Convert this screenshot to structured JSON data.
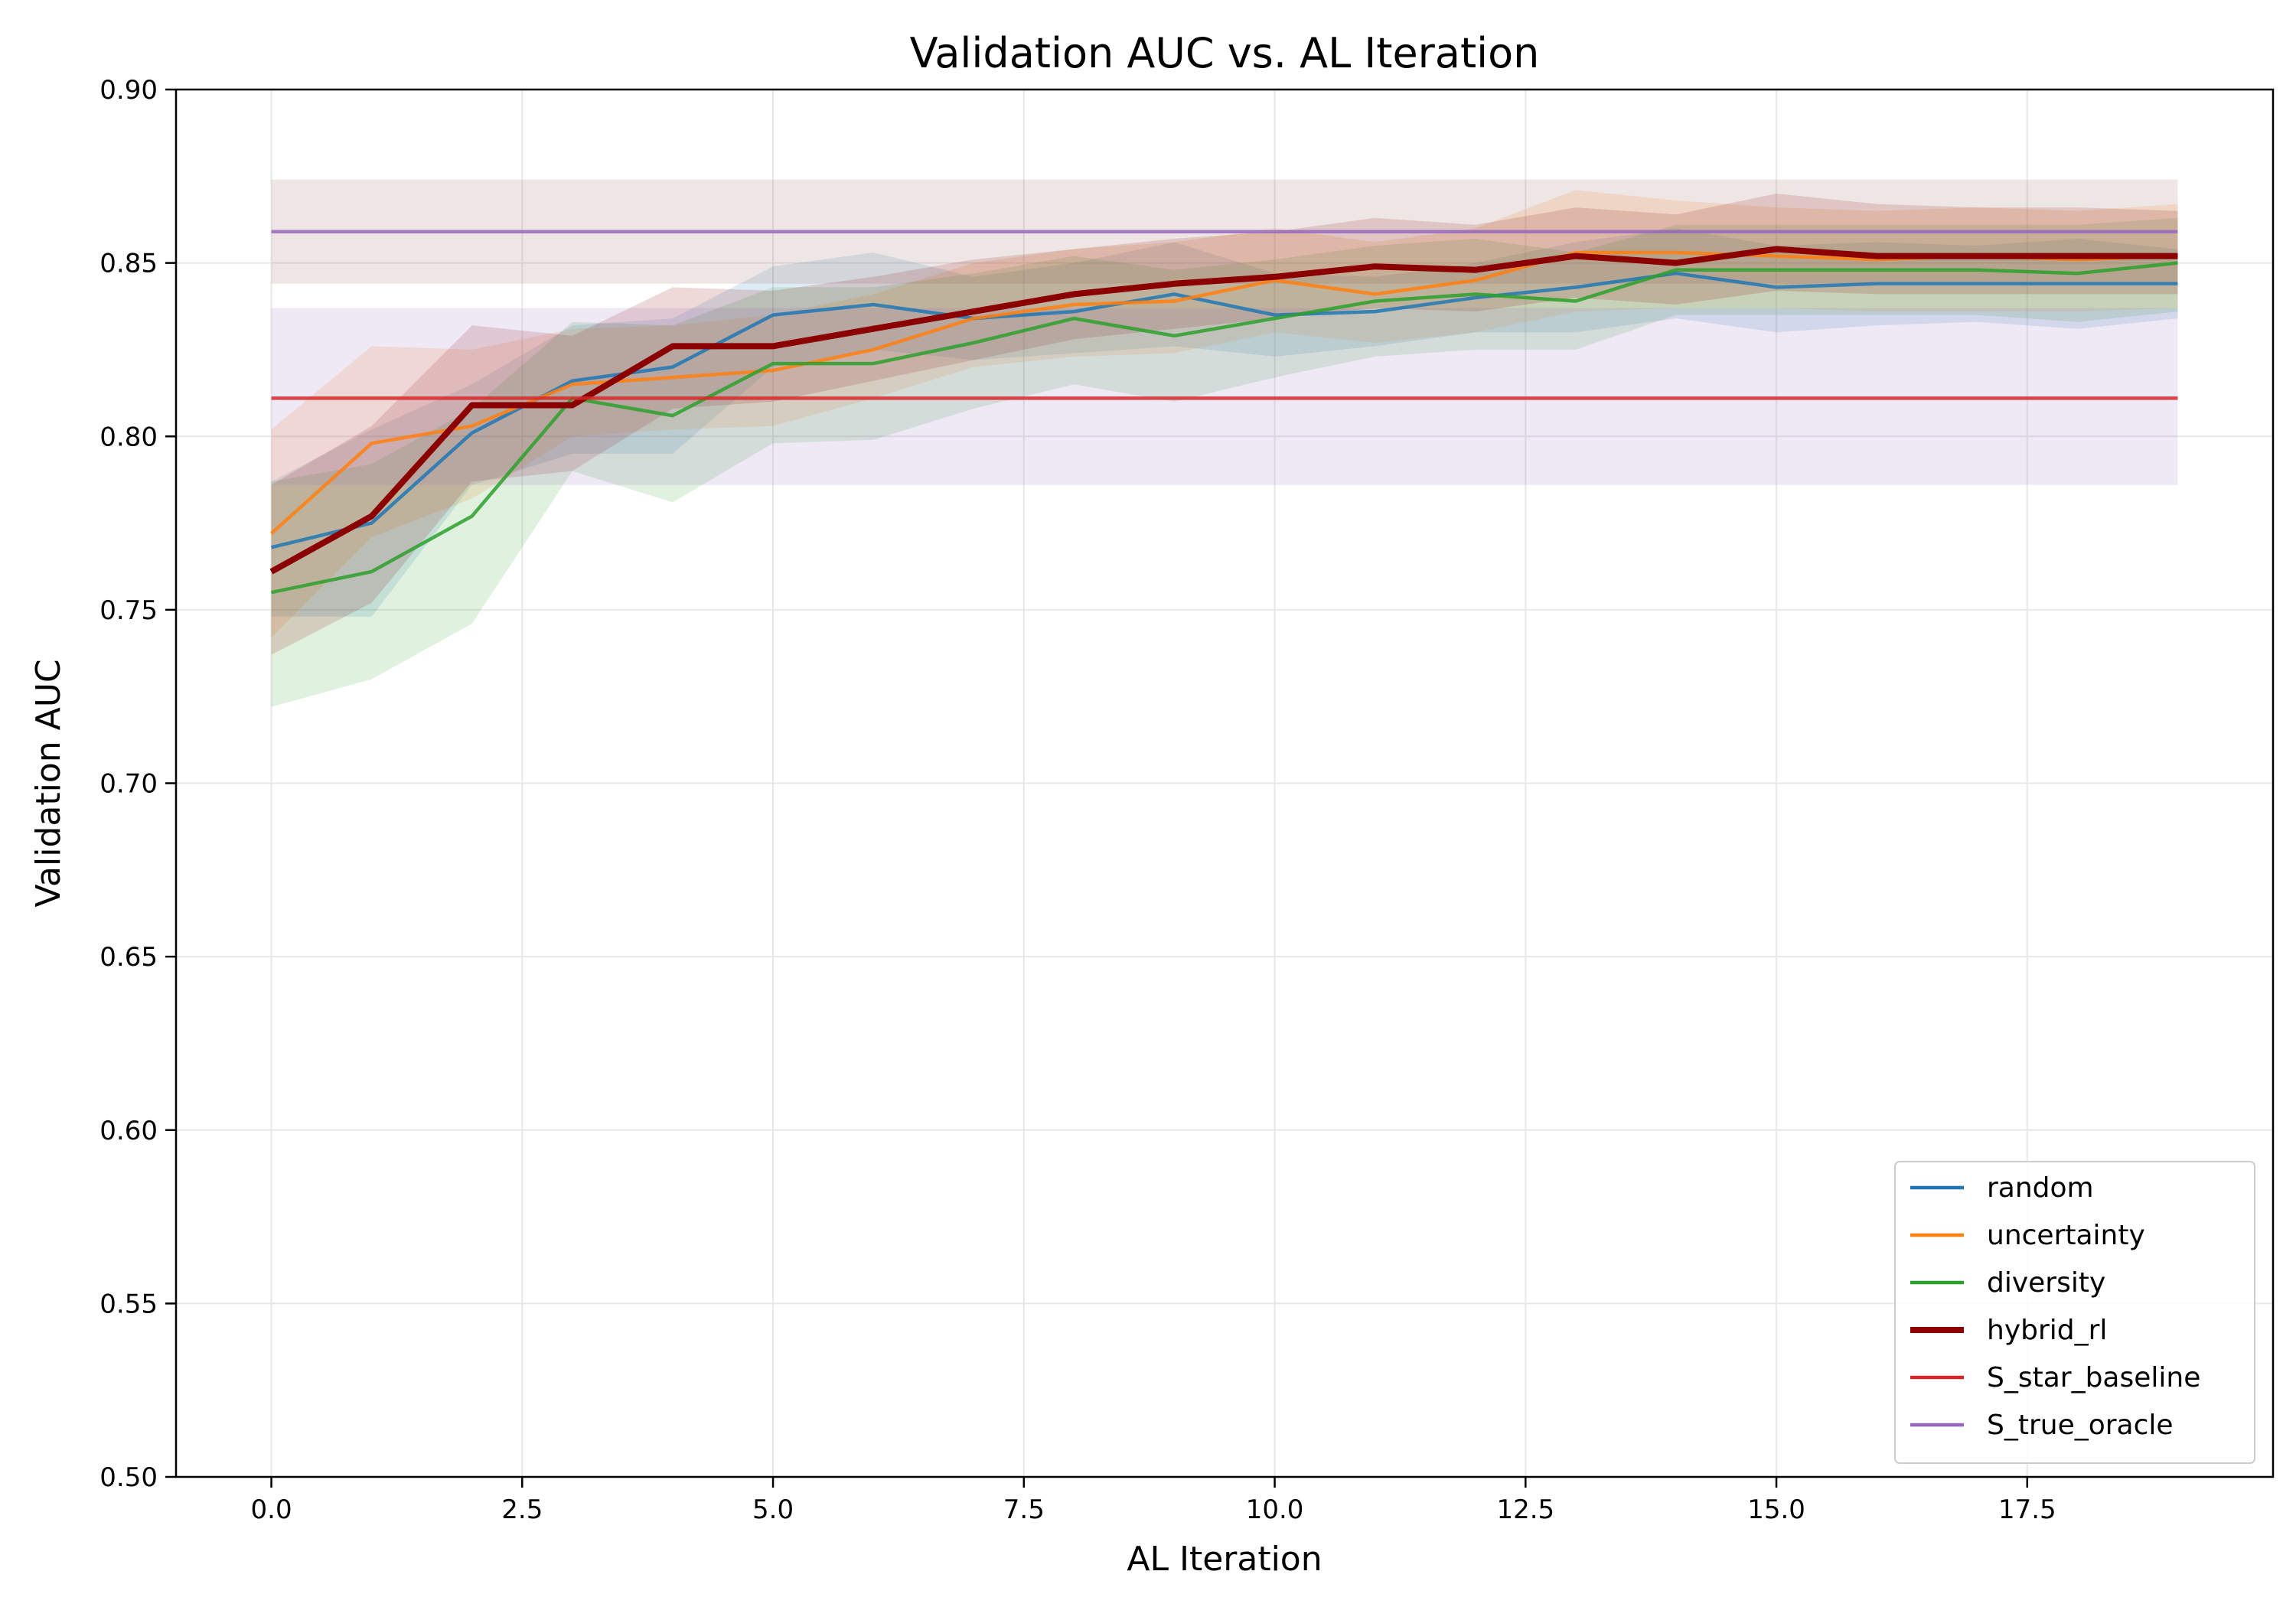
{
  "chart_data": {
    "type": "line",
    "title": "Validation AUC vs. AL Iteration",
    "xlabel": "AL Iteration",
    "ylabel": "Validation AUC",
    "xlim": [
      -0.95,
      19.95
    ],
    "ylim": [
      0.5,
      0.9
    ],
    "xticks": [
      0.0,
      2.5,
      5.0,
      7.5,
      10.0,
      12.5,
      15.0,
      17.5
    ],
    "xtick_labels": [
      "0.0",
      "2.5",
      "5.0",
      "7.5",
      "10.0",
      "12.5",
      "15.0",
      "17.5"
    ],
    "yticks": [
      0.5,
      0.55,
      0.6,
      0.65,
      0.7,
      0.75,
      0.8,
      0.85,
      0.9
    ],
    "ytick_labels": [
      "0.50",
      "0.55",
      "0.60",
      "0.65",
      "0.70",
      "0.75",
      "0.80",
      "0.85",
      "0.90"
    ],
    "grid": true,
    "legend_position": "bottom-right",
    "x": [
      0,
      1,
      2,
      3,
      4,
      5,
      6,
      7,
      8,
      9,
      10,
      11,
      12,
      13,
      14,
      15,
      16,
      17,
      18,
      19
    ],
    "series": [
      {
        "name": "random",
        "color": "#1f77b4",
        "values": [
          0.768,
          0.775,
          0.801,
          0.816,
          0.82,
          0.835,
          0.838,
          0.834,
          0.836,
          0.841,
          0.835,
          0.836,
          0.84,
          0.843,
          0.847,
          0.843,
          0.844,
          0.844,
          0.844,
          0.844
        ],
        "band_lower": [
          0.748,
          0.748,
          0.786,
          0.795,
          0.795,
          0.82,
          0.825,
          0.822,
          0.824,
          0.826,
          0.823,
          0.826,
          0.83,
          0.83,
          0.834,
          0.83,
          0.832,
          0.833,
          0.831,
          0.834
        ],
        "band_upper": [
          0.787,
          0.802,
          0.815,
          0.832,
          0.834,
          0.849,
          0.853,
          0.846,
          0.85,
          0.856,
          0.847,
          0.846,
          0.85,
          0.856,
          0.86,
          0.855,
          0.856,
          0.855,
          0.857,
          0.854
        ]
      },
      {
        "name": "uncertainty",
        "color": "#ff7f0e",
        "values": [
          0.772,
          0.798,
          0.803,
          0.815,
          0.817,
          0.819,
          0.825,
          0.834,
          0.838,
          0.839,
          0.845,
          0.841,
          0.845,
          0.853,
          0.853,
          0.852,
          0.851,
          0.852,
          0.851,
          0.852
        ],
        "band_lower": [
          0.742,
          0.771,
          0.782,
          0.8,
          0.802,
          0.803,
          0.811,
          0.82,
          0.823,
          0.824,
          0.83,
          0.827,
          0.83,
          0.836,
          0.837,
          0.837,
          0.836,
          0.836,
          0.836,
          0.837
        ],
        "band_upper": [
          0.802,
          0.826,
          0.825,
          0.831,
          0.832,
          0.835,
          0.841,
          0.85,
          0.854,
          0.856,
          0.86,
          0.856,
          0.86,
          0.871,
          0.868,
          0.866,
          0.865,
          0.866,
          0.865,
          0.867
        ]
      },
      {
        "name": "diversity",
        "color": "#2ca02c",
        "values": [
          0.755,
          0.761,
          0.777,
          0.811,
          0.806,
          0.821,
          0.821,
          0.827,
          0.834,
          0.829,
          0.834,
          0.839,
          0.841,
          0.839,
          0.848,
          0.848,
          0.848,
          0.848,
          0.847,
          0.85
        ],
        "band_lower": [
          0.722,
          0.73,
          0.746,
          0.79,
          0.781,
          0.798,
          0.799,
          0.808,
          0.815,
          0.81,
          0.817,
          0.823,
          0.825,
          0.825,
          0.835,
          0.835,
          0.835,
          0.835,
          0.833,
          0.836
        ],
        "band_upper": [
          0.787,
          0.792,
          0.808,
          0.833,
          0.832,
          0.843,
          0.843,
          0.847,
          0.852,
          0.848,
          0.851,
          0.855,
          0.857,
          0.853,
          0.861,
          0.861,
          0.861,
          0.861,
          0.861,
          0.863
        ]
      },
      {
        "name": "hybrid_rl",
        "color": "#8b0000",
        "values": [
          0.761,
          0.777,
          0.809,
          0.809,
          0.826,
          0.826,
          0.831,
          0.836,
          0.841,
          0.844,
          0.846,
          0.849,
          0.848,
          0.852,
          0.85,
          0.854,
          0.852,
          0.852,
          0.852,
          0.852
        ],
        "band_lower": [
          0.737,
          0.752,
          0.787,
          0.79,
          0.808,
          0.81,
          0.816,
          0.822,
          0.828,
          0.831,
          0.834,
          0.837,
          0.836,
          0.84,
          0.838,
          0.842,
          0.841,
          0.841,
          0.841,
          0.841
        ],
        "band_upper": [
          0.786,
          0.803,
          0.832,
          0.829,
          0.843,
          0.842,
          0.846,
          0.851,
          0.854,
          0.857,
          0.859,
          0.863,
          0.861,
          0.866,
          0.864,
          0.87,
          0.867,
          0.866,
          0.866,
          0.865
        ]
      },
      {
        "name": "S_star_baseline",
        "color": "#d62728",
        "values": [
          0.811,
          0.811,
          0.811,
          0.811,
          0.811,
          0.811,
          0.811,
          0.811,
          0.811,
          0.811,
          0.811,
          0.811,
          0.811,
          0.811,
          0.811,
          0.811,
          0.811,
          0.811,
          0.811,
          0.811
        ],
        "band_lower": [
          0.786,
          0.786,
          0.786,
          0.786,
          0.786,
          0.786,
          0.786,
          0.786,
          0.786,
          0.786,
          0.786,
          0.786,
          0.786,
          0.786,
          0.786,
          0.786,
          0.786,
          0.786,
          0.786,
          0.786
        ],
        "band_upper": [
          0.837,
          0.837,
          0.837,
          0.837,
          0.837,
          0.837,
          0.837,
          0.837,
          0.837,
          0.837,
          0.837,
          0.837,
          0.837,
          0.837,
          0.837,
          0.837,
          0.837,
          0.837,
          0.837,
          0.837
        ],
        "band_color": "#9467bd"
      },
      {
        "name": "S_true_oracle",
        "color": "#9467bd",
        "values": [
          0.859,
          0.859,
          0.859,
          0.859,
          0.859,
          0.859,
          0.859,
          0.859,
          0.859,
          0.859,
          0.859,
          0.859,
          0.859,
          0.859,
          0.859,
          0.859,
          0.859,
          0.859,
          0.859,
          0.859
        ],
        "band_lower": [
          0.844,
          0.844,
          0.844,
          0.844,
          0.844,
          0.844,
          0.844,
          0.844,
          0.844,
          0.844,
          0.844,
          0.844,
          0.844,
          0.844,
          0.844,
          0.844,
          0.844,
          0.844,
          0.844,
          0.844
        ],
        "band_upper": [
          0.874,
          0.874,
          0.874,
          0.874,
          0.874,
          0.874,
          0.874,
          0.874,
          0.874,
          0.874,
          0.874,
          0.874,
          0.874,
          0.874,
          0.874,
          0.874,
          0.874,
          0.874,
          0.874,
          0.874
        ],
        "band_color": "#8c564b"
      }
    ]
  }
}
